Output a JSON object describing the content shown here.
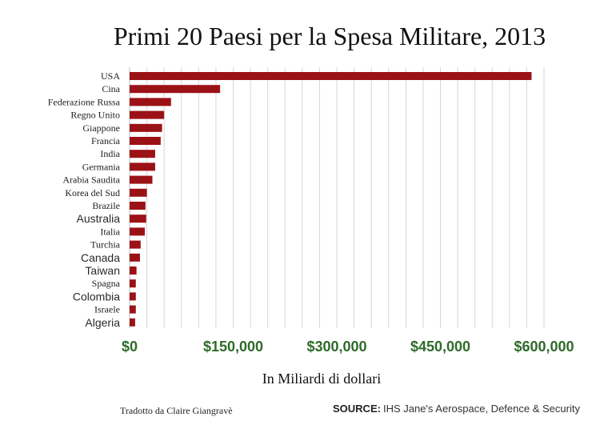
{
  "chart_data": {
    "type": "bar",
    "orientation": "horizontal",
    "title": "Primi 20 Paesi per la Spesa Militare, 2013",
    "xlabel": "In Miliardi di dollari",
    "ylabel": "",
    "categories": [
      "USA",
      "Cina",
      "Federazione Russa",
      "Regno Unito",
      "Giappone",
      "Francia",
      "India",
      "Germania",
      "Arabia Saudita",
      "Korea del Sud",
      "Brazile",
      "Australia",
      "Italia",
      "Turchia",
      "Canada",
      "Taiwan",
      "Spagna",
      "Colombia",
      "Israele",
      "Algeria"
    ],
    "values": [
      582000,
      131000,
      60000,
      50000,
      47000,
      45000,
      37000,
      37000,
      33000,
      25000,
      23000,
      24000,
      22000,
      16000,
      15000,
      10000,
      9000,
      9000,
      9000,
      8000
    ],
    "xlim": [
      0,
      600000
    ],
    "xticks": [
      0,
      150000,
      300000,
      450000,
      600000
    ],
    "xtick_labels": [
      "$0",
      "$150,000",
      "$300,000",
      "$450,000",
      "$600,000"
    ],
    "sans_labels": [
      "Australia",
      "Canada",
      "Taiwan",
      "Colombia",
      "Algeria"
    ],
    "grid": true,
    "bar_color": "#9b1216",
    "grid_color": "#d6d6d6",
    "tick_color": "#2f6b2a"
  },
  "footer": {
    "credit": "Tradotto da Claire Giangravè",
    "source_label": "SOURCE:",
    "source_text": "IHS Jane's Aerospace, Defence & Security"
  }
}
